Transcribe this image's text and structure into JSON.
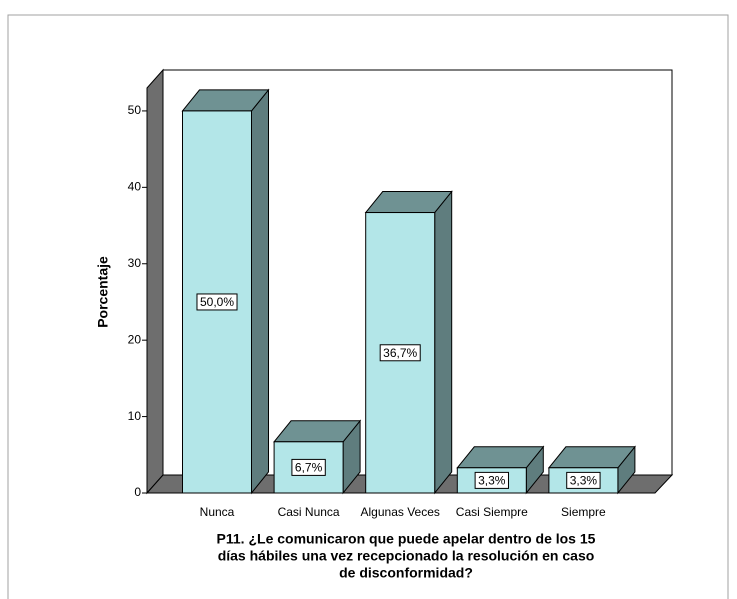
{
  "chart_data": {
    "type": "bar3d",
    "y_label": "Porcentaje",
    "x_label": [
      "P11. ¿Le comunicaron que puede apelar dentro de los 15",
      "días hábiles una vez recepcionado la resolución en caso",
      "de disconformidad?"
    ],
    "categories": [
      "Nunca",
      "Casi Nunca",
      "Algunas Veces",
      "Casi Siempre",
      "Siempre"
    ],
    "values": [
      50.0,
      6.7,
      36.7,
      3.3,
      3.3
    ],
    "value_labels": [
      "50,0%",
      "6,7%",
      "36,7%",
      "3,3%",
      "3,3%"
    ],
    "color": "#b3e6e8",
    "ylim": [
      0,
      53
    ],
    "yticks": [
      0,
      10,
      20,
      30,
      40,
      50
    ]
  }
}
